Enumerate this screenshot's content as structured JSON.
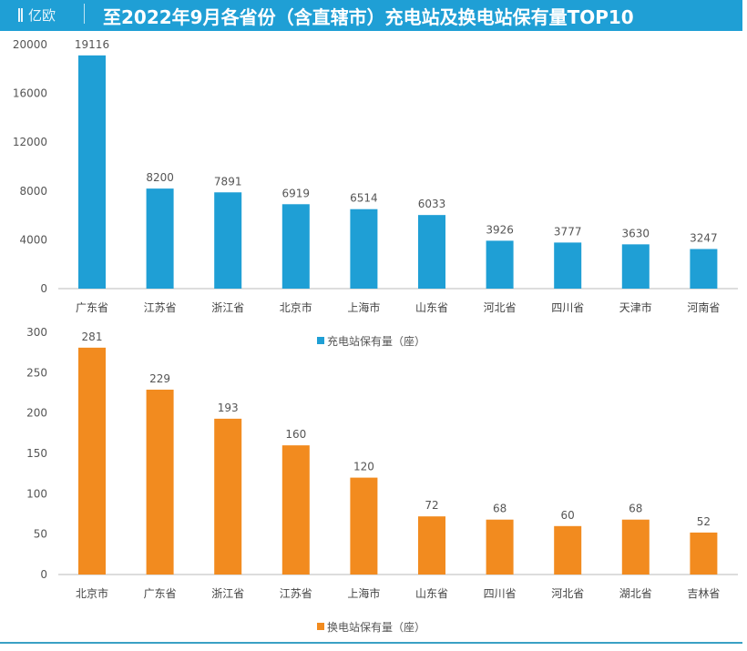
{
  "header": {
    "logo": "亿欧",
    "title": "至2022年9月各省份（含直辖市）充电站及换电站保有量TOP10"
  },
  "chart_data": [
    {
      "type": "bar",
      "categories": [
        "广东省",
        "江苏省",
        "浙江省",
        "北京市",
        "上海市",
        "山东省",
        "河北省",
        "四川省",
        "天津市",
        "河南省"
      ],
      "series": [
        {
          "name": "充电站保有量（座）",
          "values": [
            19116,
            8200,
            7891,
            6919,
            6514,
            6033,
            3926,
            3777,
            3630,
            3247
          ],
          "color": "#1f9fd5"
        }
      ],
      "ylim": [
        0,
        20000
      ],
      "yticks": [
        0,
        4000,
        8000,
        12000,
        16000,
        20000
      ],
      "legend": "bottom",
      "grid": false,
      "data_labels": true
    },
    {
      "type": "bar",
      "categories": [
        "北京市",
        "广东省",
        "浙江省",
        "江苏省",
        "上海市",
        "山东省",
        "四川省",
        "河北省",
        "湖北省",
        "吉林省"
      ],
      "series": [
        {
          "name": "换电站保有量（座）",
          "values": [
            281,
            229,
            193,
            160,
            120,
            72,
            68,
            60,
            68,
            52
          ],
          "color": "#f28b1f"
        }
      ],
      "ylim": [
        0,
        300
      ],
      "yticks": [
        0,
        50,
        100,
        150,
        200,
        250,
        300
      ],
      "legend": "bottom",
      "grid": false,
      "data_labels": true
    }
  ]
}
